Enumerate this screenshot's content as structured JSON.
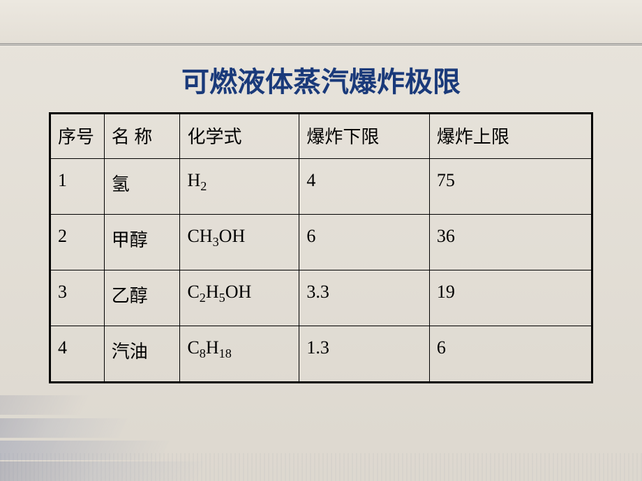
{
  "title": "可燃液体蒸汽爆炸极限",
  "title_color": "#1a3a7a",
  "title_fontsize": 40,
  "background_gradient": [
    "#e8e4dc",
    "#ddd8cf"
  ],
  "table": {
    "border_color": "#000000",
    "outer_border_width": 3,
    "inner_border_width": 1.5,
    "cell_fontsize": 26,
    "cell_text_color": "#000000",
    "columns": [
      {
        "key": "seq",
        "label": "序号",
        "width_pct": 10
      },
      {
        "key": "name",
        "label": "名 称",
        "width_pct": 14
      },
      {
        "key": "formula",
        "label": "化学式",
        "width_pct": 22
      },
      {
        "key": "lower",
        "label": "爆炸下限",
        "width_pct": 24
      },
      {
        "key": "upper",
        "label": "爆炸上限",
        "width_pct": 30
      }
    ],
    "rows": [
      {
        "seq": "1",
        "name": "氢",
        "formula_html": "H<sub>2</sub>",
        "lower": "4",
        "upper": "75"
      },
      {
        "seq": "2",
        "name": "甲醇",
        "formula_html": "CH<sub>3</sub>OH",
        "lower": "6",
        "upper": "36"
      },
      {
        "seq": "3",
        "name": "乙醇",
        "formula_html": "C<sub>2</sub>H<sub>5</sub>OH",
        "lower": "3.3",
        "upper": "19"
      },
      {
        "seq": "4",
        "name": "汽油",
        "formula_html": "C<sub>8</sub>H<sub>18</sub>",
        "lower": "1.3",
        "upper": "6"
      }
    ]
  },
  "decoration": {
    "strip_colors": [
      "rgba(90,100,140,0.6)",
      "rgba(70,90,150,0.5)",
      "rgba(90,100,140,0.6)",
      "rgba(60,70,120,0.35)"
    ]
  }
}
